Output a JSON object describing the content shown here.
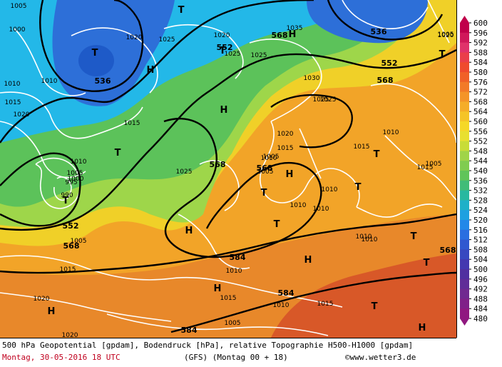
{
  "map": {
    "colors": {
      "ocean_cold": "#23b8e8",
      "cold_core": "#2d6fd8",
      "low_core": "#1e5ac8",
      "mid_green": "#5cc25a",
      "light_green": "#9ed64a",
      "yellow": "#f0d028",
      "orange": "#f2a428",
      "dark_orange": "#e8882a",
      "red": "#d85828",
      "isohypse": "#000000",
      "isobar": "#ffffff"
    },
    "pressure_centers": [
      {
        "symbol": "T",
        "type": "low"
      },
      {
        "symbol": "T",
        "type": "low"
      },
      {
        "symbol": "T",
        "type": "low"
      },
      {
        "symbol": "T",
        "type": "low"
      },
      {
        "symbol": "T",
        "type": "low"
      },
      {
        "symbol": "T",
        "type": "low"
      },
      {
        "symbol": "T",
        "type": "low"
      },
      {
        "symbol": "T",
        "type": "low"
      },
      {
        "symbol": "T",
        "type": "low"
      },
      {
        "symbol": "T",
        "type": "low"
      },
      {
        "symbol": "T",
        "type": "low"
      },
      {
        "symbol": "T",
        "type": "low"
      },
      {
        "symbol": "T",
        "type": "low"
      },
      {
        "symbol": "H",
        "type": "high"
      },
      {
        "symbol": "H",
        "type": "high"
      },
      {
        "symbol": "H",
        "type": "high"
      },
      {
        "symbol": "H",
        "type": "high"
      },
      {
        "symbol": "H",
        "type": "high"
      },
      {
        "symbol": "H",
        "type": "high"
      },
      {
        "symbol": "H",
        "type": "high"
      },
      {
        "symbol": "H",
        "type": "high"
      },
      {
        "symbol": "H",
        "type": "high"
      }
    ],
    "contour_labels": [
      "536",
      "536",
      "552",
      "552",
      "552",
      "568",
      "568",
      "568",
      "568",
      "568",
      "584",
      "584",
      "584",
      "568"
    ],
    "isobar_labels": [
      "1005",
      "1000",
      "1010",
      "1015",
      "1020",
      "1025",
      "1015",
      "1010",
      "1020",
      "1020",
      "1025",
      "1030",
      "1035",
      "1025",
      "1020",
      "1015",
      "1010",
      "1005",
      "1000",
      "995",
      "990",
      "1005",
      "1015",
      "1020",
      "1025",
      "1010",
      "1010",
      "1015",
      "1020",
      "1010",
      "1005",
      "1010",
      "1010",
      "1010",
      "1015",
      "1005",
      "1015",
      "1010",
      "1015",
      "1010",
      "1010",
      "1020",
      "1005",
      "1005",
      "1005",
      "1025",
      "1025"
    ]
  },
  "legend": {
    "ticks": [
      "600",
      "596",
      "592",
      "588",
      "584",
      "580",
      "576",
      "572",
      "568",
      "564",
      "560",
      "556",
      "552",
      "548",
      "544",
      "540",
      "536",
      "532",
      "528",
      "524",
      "520",
      "516",
      "512",
      "508",
      "504",
      "500",
      "496",
      "492",
      "488",
      "484",
      "480"
    ],
    "colors": [
      "#c0004a",
      "#d0185a",
      "#e0326a",
      "#ea3e4a",
      "#ef4a2e",
      "#f06028",
      "#f27a28",
      "#f49428",
      "#f5ad28",
      "#f5c428",
      "#f5d828",
      "#e8e030",
      "#c8dc38",
      "#a0d448",
      "#80cc50",
      "#60c45a",
      "#40bc78",
      "#28b8a0",
      "#1eb0c8",
      "#1ea0e0",
      "#2288e8",
      "#2a6ee0",
      "#3058d0",
      "#3848c0",
      "#4438b0",
      "#5030a0",
      "#602c98",
      "#702890",
      "#802088",
      "#901880"
    ]
  },
  "footer": {
    "line1": "500 hPa Geopotential [gpdam], Bodendruck [hPa], relative Topographie H500-H1000 [gpdam]",
    "date": "Montag, 30-05-2016  18 UTC",
    "model": "(GFS)  (Montag 00 + 18)",
    "credit": "©www.wetter3.de"
  }
}
